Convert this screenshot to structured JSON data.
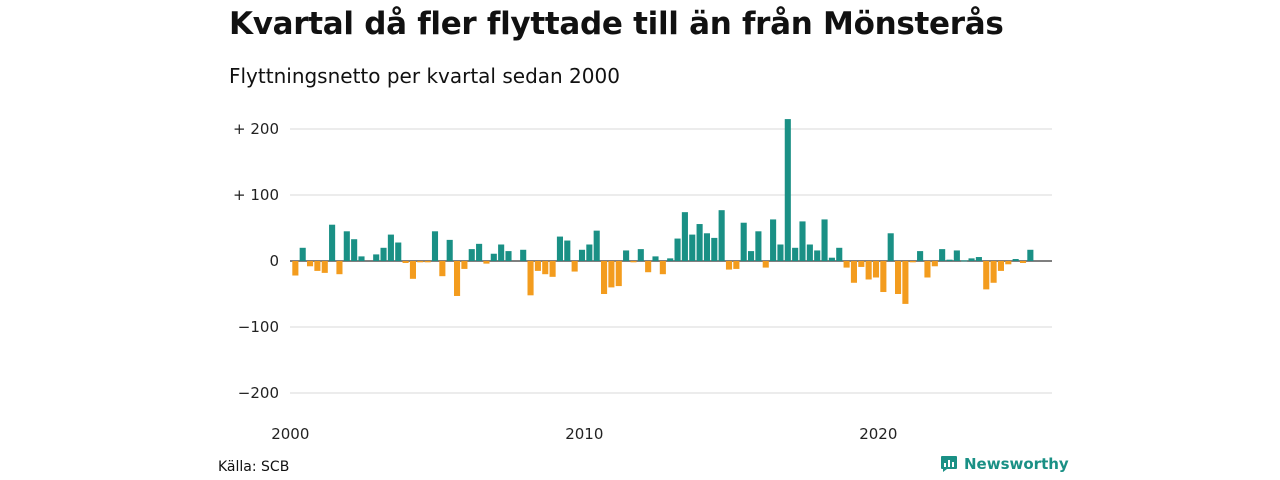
{
  "title": "Kvartal då fler flyttade till än från Mönsterås",
  "subtitle": "Flyttningsnetto per kvartal sedan 2000",
  "source": "Källa: SCB",
  "brand": {
    "name": "Newsworthy",
    "icon": "newsworthy-logo-icon"
  },
  "colors": {
    "positive": "#1a9085",
    "negative": "#f39c1e",
    "grid": "#d9d9d9",
    "zero": "#333333"
  },
  "chart_data": {
    "type": "bar",
    "title": "Kvartal då fler flyttade till än från Mönsterås",
    "subtitle": "Flyttningsnetto per kvartal sedan 2000",
    "x_start": "2000 Q1",
    "x_ticks": [
      "2000",
      "2010",
      "2020"
    ],
    "y_ticks": [
      {
        "value": 200,
        "label": "+ 200"
      },
      {
        "value": 100,
        "label": "+ 100"
      },
      {
        "value": 0,
        "label": "0"
      },
      {
        "value": -100,
        "label": "−100"
      },
      {
        "value": -200,
        "label": "−200"
      }
    ],
    "ylim": [
      -200,
      200
    ],
    "grid": true,
    "values": [
      -22,
      20,
      -8,
      -15,
      -18,
      55,
      -20,
      45,
      33,
      7,
      0,
      10,
      20,
      40,
      28,
      -3,
      -27,
      -2,
      -2,
      45,
      -23,
      32,
      -53,
      -12,
      18,
      26,
      -4,
      11,
      25,
      15,
      0,
      17,
      -52,
      -15,
      -20,
      -24,
      37,
      31,
      -16,
      17,
      25,
      46,
      -50,
      -40,
      -38,
      16,
      -2,
      18,
      -17,
      7,
      -20,
      4,
      34,
      74,
      40,
      56,
      42,
      35,
      77,
      -13,
      -12,
      58,
      15,
      45,
      -10,
      63,
      25,
      215,
      20,
      60,
      25,
      16,
      63,
      5,
      20,
      -10,
      -33,
      -9,
      -28,
      -25,
      -47,
      42,
      -50,
      -65,
      -2,
      15,
      -25,
      -8,
      18,
      2,
      16,
      1,
      4,
      6,
      -43,
      -33,
      -15,
      -5,
      3,
      -3,
      17
    ]
  }
}
